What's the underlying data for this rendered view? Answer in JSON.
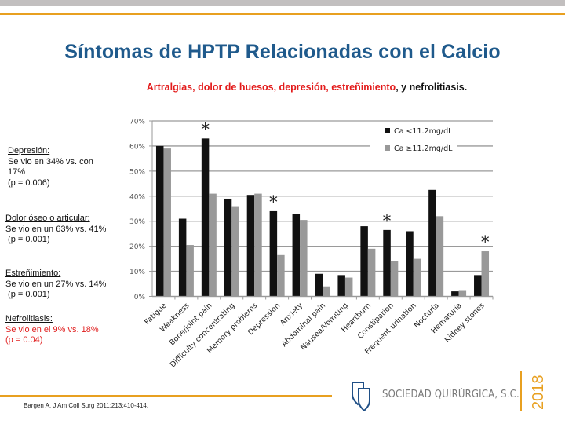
{
  "header": {
    "title": "Síntomas de HPTP Relacionadas con el Calcio",
    "subtitle_red": "Artralgias, dolor de huesos, depresión, estreñimiento",
    "subtitle_black": ", y nefrolitiasis."
  },
  "notes": [
    {
      "head": "Depresión:",
      "lines": [
        "Se vio en 34% vs. con",
        "17%",
        "(p = 0.006)"
      ],
      "color": "black"
    },
    {
      "head": "Dolor óseo o articular:",
      "lines": [
        "Se vio en un 63% vs. 41%",
        " (p = 0.001)"
      ],
      "color": "black"
    },
    {
      "head": "Estreñimiento:",
      "lines": [
        "Se vio en un 27% vs. 14%",
        " (p = 0.001)"
      ],
      "color": "black"
    },
    {
      "head": "Nefrolitiasis:",
      "lines": [
        "Se vio en el 9% vs. 18%",
        "(p = 0.04)"
      ],
      "color": "red"
    }
  ],
  "chart_data": {
    "type": "bar",
    "title": "",
    "xlabel": "",
    "ylabel": "",
    "ylim": [
      0,
      70
    ],
    "yticks": [
      "0%",
      "10%",
      "20%",
      "30%",
      "40%",
      "50%",
      "60%",
      "70%"
    ],
    "grid": true,
    "legend_position": "upper right",
    "categories": [
      "Fatigue",
      "Weakness",
      "Bone/joint pain",
      "Difficulty concentrating",
      "Memory problems",
      "Depression",
      "Anxiety",
      "Abdominal pain",
      "Nausea/Vomiting",
      "Heartburn",
      "Constipation",
      "Frequent urination",
      "Nocturia",
      "Hematuria",
      "Kidney stones"
    ],
    "series": [
      {
        "name": "Ca <11.2mg/dL",
        "color": "#111111",
        "values": [
          60,
          31,
          63,
          39,
          40.5,
          34,
          33,
          9,
          8.5,
          28,
          26.5,
          26,
          42.5,
          2,
          8.5
        ]
      },
      {
        "name": "Ca ≥11.2mg/dL",
        "color": "#999999",
        "values": [
          59,
          20.5,
          41,
          36,
          41,
          16.5,
          30.5,
          4,
          7.5,
          19,
          14,
          15,
          32,
          2.5,
          18
        ]
      }
    ],
    "annotations": [
      {
        "category": "Bone/joint pain",
        "text": "*"
      },
      {
        "category": "Depression",
        "text": "*"
      },
      {
        "category": "Constipation",
        "text": "*"
      },
      {
        "category": "Kidney stones",
        "text": "*"
      }
    ]
  },
  "footer": {
    "citation": "Bargen A. J Am  Coll Surg 2011;213:410-414.",
    "brand": "SOCIEDAD QUIRÚRGICA, S.C.",
    "year": "2018",
    "logo_icon": "shield-icon"
  }
}
